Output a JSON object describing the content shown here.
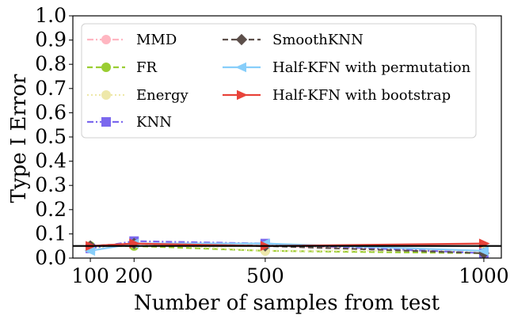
{
  "chart_data": {
    "type": "line",
    "xlabel": "Number of samples from test",
    "ylabel": "Type I Error",
    "x": [
      100,
      200,
      500,
      1000
    ],
    "xticks": [
      "100",
      "200",
      "500",
      "1000"
    ],
    "xlim": [
      60,
      1040
    ],
    "ylim": [
      0.0,
      1.0
    ],
    "yticks": [
      "0.0",
      "0.1",
      "0.2",
      "0.3",
      "0.4",
      "0.5",
      "0.6",
      "0.7",
      "0.8",
      "0.9",
      "1.0"
    ],
    "reference_line": 0.05,
    "legend_position": "top-left",
    "series": [
      {
        "name": "MMD",
        "color": "#ffb6c1",
        "marker": "circle",
        "dash": "dashdot",
        "values": [
          0.05,
          0.06,
          0.05,
          0.03
        ]
      },
      {
        "name": "FR",
        "color": "#9acd32",
        "marker": "circle",
        "dash": "dashed",
        "values": [
          0.05,
          0.05,
          0.03,
          0.02
        ]
      },
      {
        "name": "Energy",
        "color": "#eee8aa",
        "marker": "circle",
        "dash": "dotted",
        "values": [
          0.04,
          0.06,
          0.03,
          0.03
        ]
      },
      {
        "name": "KNN",
        "color": "#7b68ee",
        "marker": "square",
        "dash": "dashdot",
        "values": [
          0.04,
          0.07,
          0.06,
          0.02
        ]
      },
      {
        "name": "SmoothKNN",
        "color": "#5c4f4a",
        "marker": "diamond",
        "dash": "dashed",
        "values": [
          0.05,
          0.06,
          0.05,
          0.02
        ]
      },
      {
        "name": "Half-KFN with permutation",
        "color": "#87cefa",
        "marker": "triangle-left",
        "dash": "solid",
        "values": [
          0.03,
          0.06,
          0.06,
          0.03
        ]
      },
      {
        "name": "Half-KFN with bootstrap",
        "color": "#e8433a",
        "marker": "triangle-right",
        "dash": "solid",
        "values": [
          0.05,
          0.06,
          0.05,
          0.06
        ]
      }
    ]
  }
}
